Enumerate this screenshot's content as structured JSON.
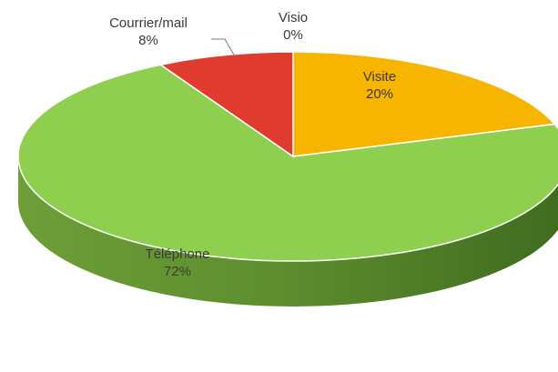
{
  "chart_data": {
    "type": "pie",
    "style": "3d",
    "slices": [
      {
        "label": "Visio",
        "value": 0,
        "value_label": "0%",
        "color": "#d9a300"
      },
      {
        "label": "Visite",
        "value": 20,
        "value_label": "20%",
        "color": "#f7b500"
      },
      {
        "label": "Téléphone",
        "value": 72,
        "value_label": "72%",
        "color": "#8ecf4f"
      },
      {
        "label": "Courrier/mail",
        "value": 8,
        "value_label": "8%",
        "color": "#e03b2f"
      }
    ],
    "label_color": "#3a3a3a",
    "side_color": "#5e8f2f"
  }
}
